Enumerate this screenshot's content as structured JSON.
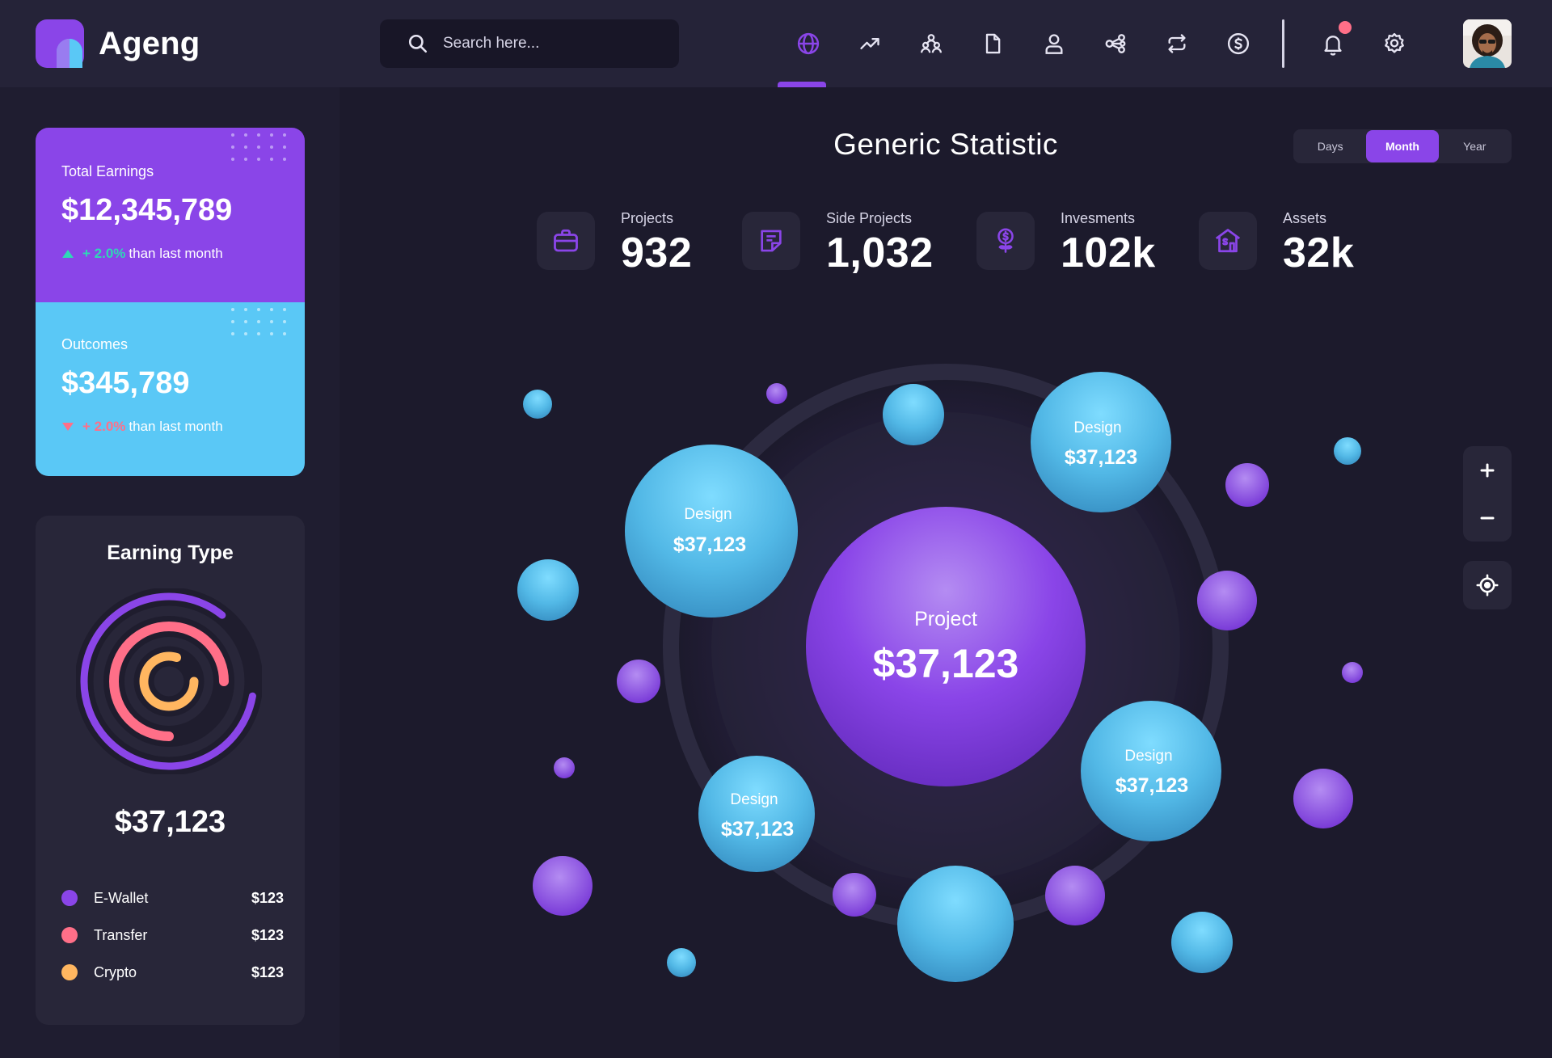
{
  "brand": {
    "name": "Ageng"
  },
  "search": {
    "placeholder": "Search here..."
  },
  "nav": {
    "items": [
      {
        "icon": "globe-icon",
        "active": true
      },
      {
        "icon": "trending-up-icon",
        "active": false
      },
      {
        "icon": "users-icon",
        "active": false
      },
      {
        "icon": "document-icon",
        "active": false
      },
      {
        "icon": "user-icon",
        "active": false
      },
      {
        "icon": "share-icon",
        "active": false
      },
      {
        "icon": "transfer-icon",
        "active": false
      },
      {
        "icon": "dollar-icon",
        "active": false
      }
    ]
  },
  "cards": {
    "earnings": {
      "title": "Total Earnings",
      "amount": "$12,345,789",
      "change": "+ 2.0%",
      "change_suffix": "than last month",
      "direction": "up"
    },
    "outcomes": {
      "title": "Outcomes",
      "amount": "$345,789",
      "change": "+ 2.0%",
      "change_suffix": "than last month",
      "direction": "down"
    }
  },
  "earning_type": {
    "title": "Earning Type",
    "amount": "$37,123",
    "items": [
      {
        "label": "E-Wallet",
        "value": "$123",
        "color": "#8a45e8",
        "share": 0.83
      },
      {
        "label": "Transfer",
        "value": "$123",
        "color": "#ff6f88",
        "share": 0.75
      },
      {
        "label": "Crypto",
        "value": "$123",
        "color": "#ffb660",
        "share": 0.8
      }
    ]
  },
  "main": {
    "title": "Generic Statistic",
    "periods": [
      {
        "label": "Days",
        "active": false
      },
      {
        "label": "Month",
        "active": true
      },
      {
        "label": "Year",
        "active": false
      }
    ],
    "stats": [
      {
        "label": "Projects",
        "value": "932",
        "icon": "briefcase-icon"
      },
      {
        "label": "Side Projects",
        "value": "1,032",
        "icon": "note-icon"
      },
      {
        "label": "Invesments",
        "value": "102k",
        "icon": "money-plant-icon"
      },
      {
        "label": "Assets",
        "value": "32k",
        "icon": "house-dollar-icon"
      }
    ]
  },
  "bubbles": {
    "center": {
      "label": "Project",
      "value": "$37,123"
    },
    "labeled": [
      {
        "label": "Design",
        "value": "$37,123"
      },
      {
        "label": "Design",
        "value": "$37,123"
      },
      {
        "label": "Design",
        "value": "$37,123"
      },
      {
        "label": "Design",
        "value": "$37,123"
      }
    ]
  },
  "colors": {
    "accent": "#8a45e8",
    "cyan": "#5ac8f6",
    "pink": "#ff6f88",
    "orange": "#ffb660",
    "teal": "#2fd8b6"
  }
}
